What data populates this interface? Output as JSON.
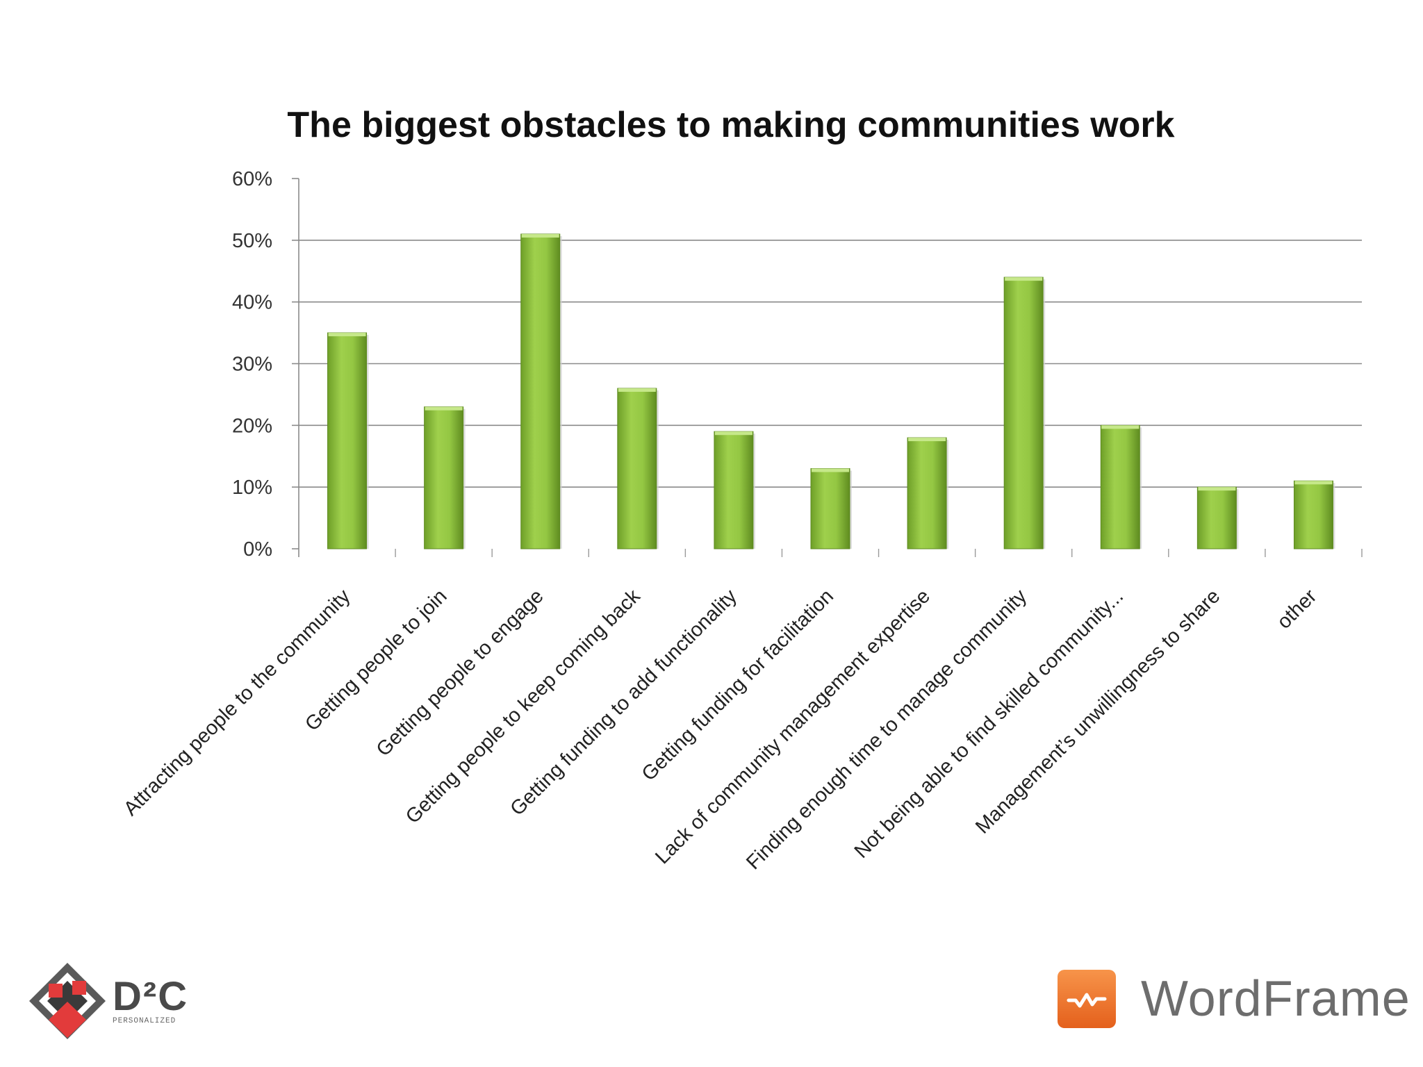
{
  "chart_data": {
    "type": "bar",
    "title": "The biggest obstacles to making communities work",
    "xlabel": "",
    "ylabel": "",
    "ylim": [
      0,
      0.6
    ],
    "yticks": [
      0,
      0.1,
      0.2,
      0.3,
      0.4,
      0.5,
      0.6
    ],
    "ytick_labels": [
      "0%",
      "10%",
      "20%",
      "30%",
      "40%",
      "50%",
      "60%"
    ],
    "grid": true,
    "categories": [
      "Attracting people to the community",
      "Getting people to join",
      "Getting people to engage",
      "Getting people to keep coming back",
      "Getting funding to add functionality",
      "Getting funding for facilitation",
      "Lack of community management expertise",
      "Finding enough time to manage community",
      "Not being able to find skilled community...",
      "Management’s unwillingness to share",
      "other"
    ],
    "values": [
      0.35,
      0.23,
      0.51,
      0.26,
      0.19,
      0.13,
      0.18,
      0.44,
      0.2,
      0.1,
      0.11
    ],
    "bar_color": "#8dc63f"
  },
  "footer": {
    "left_logo_name": "D²C",
    "left_logo_tagline": "PERSONALIZED",
    "right_logo_name": "WordFrame",
    "brand_color": "#f07e2e"
  }
}
